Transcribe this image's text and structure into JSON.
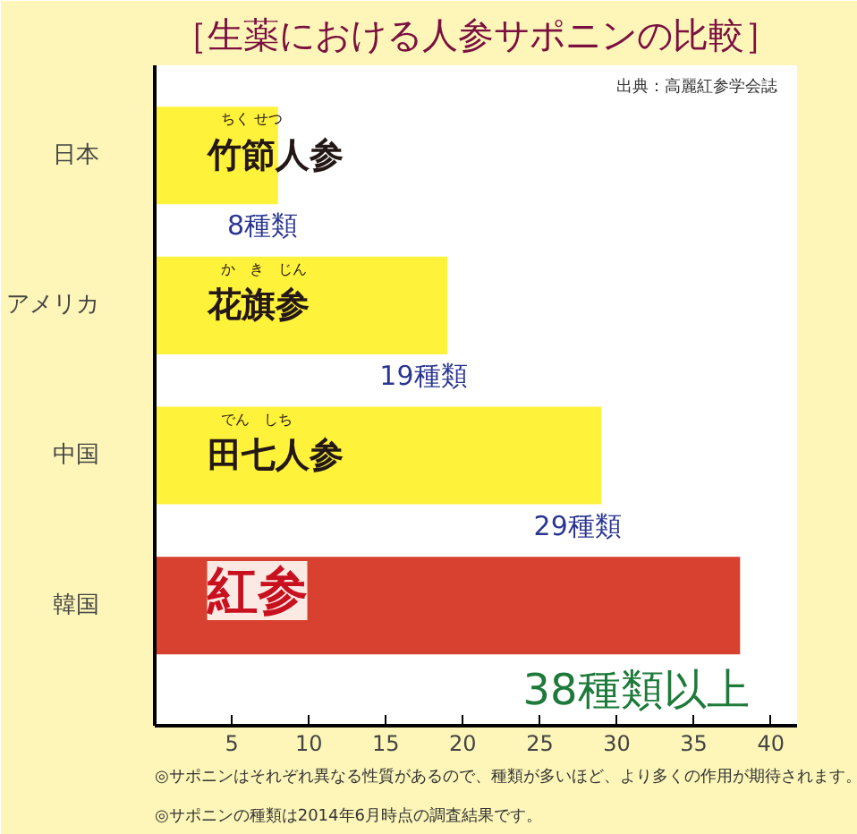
{
  "chart_data": {
    "type": "bar",
    "orientation": "horizontal",
    "title": "［生薬における人参サポニンの比較］",
    "categories": [
      "日本",
      "アメリカ",
      "中国",
      "韓国"
    ],
    "values": [
      8,
      19,
      29,
      38
    ],
    "colors": [
      "#fff23a",
      "#fff23a",
      "#fff23a",
      "#d8402f"
    ],
    "value_labels": [
      "8種類",
      "19種類",
      "29種類",
      "38種類以上"
    ],
    "xlim": [
      0,
      41.7
    ],
    "xticks": [
      5,
      10,
      15,
      20,
      25,
      30,
      35,
      40
    ],
    "grid": false,
    "annotations": [
      "竹節人参",
      "花旗参",
      "田七人参",
      "紅参",
      "ちく せつ",
      "か　き　じん",
      "でん　しち",
      "出典：高麗紅参学会誌",
      "◎サポニンはそれぞれ異なる性質があるので、種類が多いほど、より多くの作用が期待されます。",
      "◎サポニンの種類は2014年6月時点の調査結果です。"
    ]
  }
}
